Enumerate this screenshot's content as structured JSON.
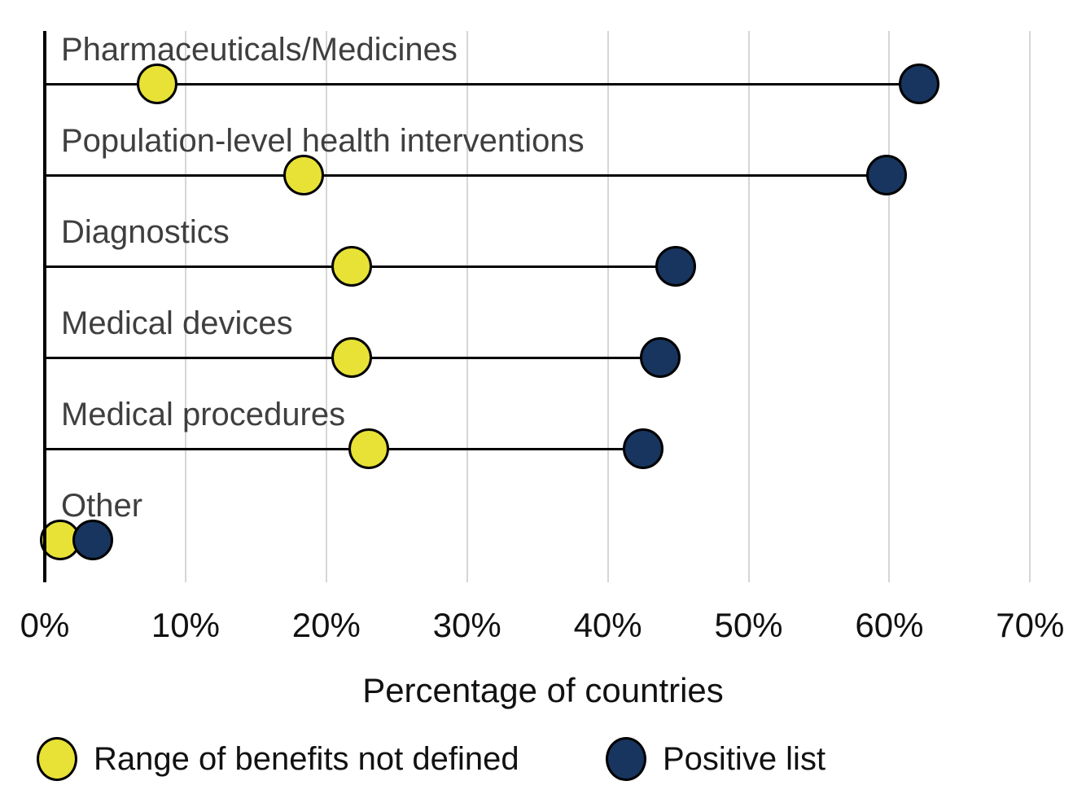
{
  "chart_data": {
    "type": "dumbbell",
    "orientation": "horizontal",
    "categories": [
      "Pharmaceuticals/Medicines",
      "Population-level health interventions",
      "Diagnostics",
      "Medical devices",
      "Medical procedures",
      "Other"
    ],
    "series": [
      {
        "name": "Range of benefits not defined",
        "color": "#e8e237",
        "values": [
          8.0,
          18.4,
          21.8,
          21.8,
          23.0,
          1.1
        ]
      },
      {
        "name": "Positive list",
        "color": "#17355e",
        "values": [
          62.1,
          59.8,
          44.8,
          43.7,
          42.5,
          3.4
        ]
      }
    ],
    "xlabel": "Percentage of countries",
    "x_ticks": [
      "0%",
      "10%",
      "20%",
      "30%",
      "40%",
      "50%",
      "60%",
      "70%"
    ],
    "x_tick_values": [
      0,
      10,
      20,
      30,
      40,
      50,
      60,
      70
    ],
    "xlim": [
      0,
      72
    ],
    "grid": "vertical",
    "legend_position": "bottom"
  },
  "colors": {
    "series_yellow": "#e8e237",
    "series_navy": "#17355e",
    "grid": "#d6d6d6",
    "axis": "#000000",
    "category_label": "#3f3f3f",
    "text": "#111111"
  }
}
